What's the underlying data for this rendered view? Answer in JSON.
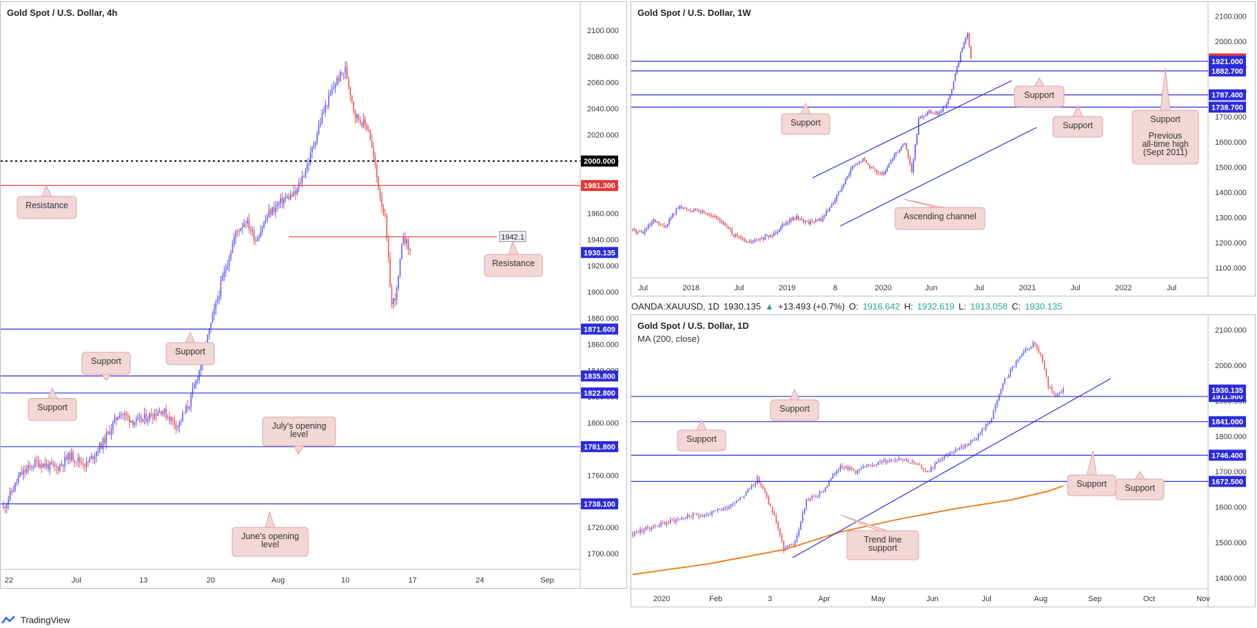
{
  "footer": {
    "brand": "TradingView",
    "icon": "tradingview-logo-icon"
  },
  "info_bar": {
    "symbol": "OANDA:XAUUSD, 1D",
    "last": "1930.135",
    "change": "+13.493 (+0.7%)",
    "o_label": "O:",
    "o": "1916.642",
    "h_label": "H:",
    "h": "1932.619",
    "l_label": "L:",
    "l": "1913.058",
    "c_label": "C:",
    "c": "1930.135"
  },
  "colors": {
    "up": "#5b5bff",
    "down": "#ef5350",
    "support": "#2b2bdc",
    "resistance": "#e53935",
    "ma": "#f07f22",
    "callout_bg": "#f3d6d6",
    "callout_border": "#d9a6a6"
  },
  "chart_data": [
    {
      "id": "h4",
      "type": "candlestick",
      "title": "Gold Spot / U.S. Dollar, 4h",
      "ylim": [
        1688,
        2112
      ],
      "y_ticks": [
        1700,
        1720,
        1740,
        1760,
        1780,
        1800,
        1820,
        1840,
        1860,
        1880,
        1900,
        1920,
        1940,
        1960,
        1980,
        2000,
        2020,
        2040,
        2060,
        2080,
        2100
      ],
      "x_ticks": [
        "22",
        "Jul",
        "13",
        "20",
        "Aug",
        "10",
        "17",
        "24",
        "Sep"
      ],
      "price_path": [
        [
          0,
          1735
        ],
        [
          10,
          1760
        ],
        [
          20,
          1770
        ],
        [
          32,
          1765
        ],
        [
          40,
          1775
        ],
        [
          50,
          1768
        ],
        [
          60,
          1785
        ],
        [
          70,
          1808
        ],
        [
          80,
          1800
        ],
        [
          95,
          1810
        ],
        [
          105,
          1798
        ],
        [
          112,
          1815
        ],
        [
          118,
          1840
        ],
        [
          124,
          1870
        ],
        [
          132,
          1910
        ],
        [
          140,
          1945
        ],
        [
          146,
          1955
        ],
        [
          152,
          1940
        ],
        [
          160,
          1960
        ],
        [
          168,
          1970
        ],
        [
          176,
          1975
        ],
        [
          184,
          2000
        ],
        [
          192,
          2035
        ],
        [
          200,
          2060
        ],
        [
          206,
          2070
        ],
        [
          212,
          2035
        ],
        [
          220,
          2025
        ],
        [
          226,
          1980
        ],
        [
          230,
          1955
        ],
        [
          234,
          1890
        ],
        [
          237,
          1900
        ],
        [
          241,
          1944
        ],
        [
          245,
          1930
        ]
      ],
      "levels": [
        {
          "value": 2000.0,
          "label": "2000.000",
          "style": "dotted",
          "color": "#000000"
        },
        {
          "value": 1981.3,
          "label": "1981.300",
          "style": "solid",
          "color": "#e53935"
        },
        {
          "value": 1942.1,
          "label": "1942.1",
          "style": "partial",
          "color": "#e53935"
        },
        {
          "value": 1871.609,
          "label": "1871.609",
          "style": "solid",
          "color": "#2b2bdc"
        },
        {
          "value": 1835.8,
          "label": "1835.800",
          "style": "solid",
          "color": "#2b2bdc"
        },
        {
          "value": 1822.8,
          "label": "1822.800",
          "style": "solid",
          "color": "#2b2bdc"
        },
        {
          "value": 1781.8,
          "label": "1781.800",
          "style": "solid",
          "color": "#2b2bdc"
        },
        {
          "value": 1738.1,
          "label": "1738.100",
          "style": "solid",
          "color": "#2b2bdc"
        }
      ],
      "last_price": {
        "value": 1930.135,
        "label": "1930.135"
      },
      "annotations": [
        "Resistance",
        "Resistance",
        "Support",
        "Support",
        "Support",
        "July's opening level",
        "June's opening level"
      ]
    },
    {
      "id": "weekly",
      "type": "candlestick",
      "title": "Gold Spot / U.S. Dollar, 1W",
      "ylim": [
        1060,
        2140
      ],
      "y_ticks": [
        1100,
        1200,
        1300,
        1400,
        1500,
        1600,
        1700,
        1800,
        1900,
        2000,
        2100
      ],
      "x_ticks": [
        "Jul",
        "2018",
        "Jul",
        "2019",
        "8",
        "2020",
        "Jun",
        "Jul",
        "2021",
        "Jul",
        "2022",
        "Jul"
      ],
      "price_path": [
        [
          0,
          1250
        ],
        [
          6,
          1240
        ],
        [
          12,
          1285
        ],
        [
          18,
          1260
        ],
        [
          26,
          1340
        ],
        [
          34,
          1330
        ],
        [
          42,
          1320
        ],
        [
          50,
          1290
        ],
        [
          58,
          1230
        ],
        [
          66,
          1200
        ],
        [
          72,
          1210
        ],
        [
          80,
          1230
        ],
        [
          88,
          1285
        ],
        [
          94,
          1300
        ],
        [
          100,
          1280
        ],
        [
          108,
          1290
        ],
        [
          114,
          1350
        ],
        [
          120,
          1420
        ],
        [
          126,
          1500
        ],
        [
          132,
          1530
        ],
        [
          138,
          1490
        ],
        [
          144,
          1470
        ],
        [
          150,
          1550
        ],
        [
          156,
          1600
        ],
        [
          160,
          1480
        ],
        [
          164,
          1690
        ],
        [
          170,
          1720
        ],
        [
          176,
          1710
        ],
        [
          182,
          1780
        ],
        [
          186,
          1900
        ],
        [
          190,
          2000
        ],
        [
          192,
          2030
        ],
        [
          194,
          1930
        ]
      ],
      "levels": [
        {
          "value": 1930.428,
          "label": "1930.428",
          "color": "#e53935",
          "kind": "last"
        },
        {
          "value": 1921.0,
          "label": "1921.000",
          "color": "#2b2bdc"
        },
        {
          "value": 1882.7,
          "label": "1882.700",
          "color": "#2b2bdc"
        },
        {
          "value": 1787.4,
          "label": "1787.400",
          "color": "#2b2bdc"
        },
        {
          "value": 1738.7,
          "label": "1738.700",
          "color": "#2b2bdc"
        }
      ],
      "annotations": [
        "Support",
        "Support",
        "Support",
        "Support",
        "Previous all-time high (Sept 2011)",
        "Ascending channel"
      ]
    },
    {
      "id": "daily",
      "type": "candlestick",
      "title": "Gold Spot / U.S. Dollar, 1D",
      "indicator": "MA (200, close)",
      "ylim": [
        1370,
        2130
      ],
      "y_ticks": [
        1400,
        1500,
        1600,
        1700,
        1800,
        1900,
        2000,
        2100
      ],
      "x_ticks": [
        "2020",
        "Feb",
        "3",
        "Apr",
        "May",
        "Jun",
        "Jul",
        "Aug",
        "Sep",
        "Oct",
        "Nov"
      ],
      "price_path": [
        [
          0,
          1525
        ],
        [
          10,
          1545
        ],
        [
          20,
          1560
        ],
        [
          30,
          1575
        ],
        [
          40,
          1580
        ],
        [
          50,
          1600
        ],
        [
          60,
          1640
        ],
        [
          66,
          1680
        ],
        [
          70,
          1640
        ],
        [
          76,
          1560
        ],
        [
          80,
          1480
        ],
        [
          86,
          1500
        ],
        [
          92,
          1620
        ],
        [
          100,
          1640
        ],
        [
          110,
          1720
        ],
        [
          118,
          1700
        ],
        [
          126,
          1720
        ],
        [
          134,
          1730
        ],
        [
          142,
          1740
        ],
        [
          150,
          1720
        ],
        [
          156,
          1700
        ],
        [
          162,
          1730
        ],
        [
          170,
          1760
        ],
        [
          178,
          1780
        ],
        [
          184,
          1810
        ],
        [
          190,
          1850
        ],
        [
          196,
          1950
        ],
        [
          202,
          2000
        ],
        [
          208,
          2040
        ],
        [
          212,
          2060
        ],
        [
          216,
          2030
        ],
        [
          220,
          1940
        ],
        [
          224,
          1910
        ],
        [
          228,
          1930
        ]
      ],
      "ma200": [
        [
          0,
          1410
        ],
        [
          40,
          1440
        ],
        [
          80,
          1480
        ],
        [
          110,
          1530
        ],
        [
          140,
          1565
        ],
        [
          170,
          1595
        ],
        [
          200,
          1620
        ],
        [
          220,
          1645
        ],
        [
          228,
          1660
        ]
      ],
      "levels": [
        {
          "value": 1911.9,
          "label": "1911.900",
          "color": "#2b2bdc"
        },
        {
          "value": 1841.0,
          "label": "1841.000",
          "color": "#2b2bdc"
        },
        {
          "value": 1746.4,
          "label": "1746.400",
          "color": "#2b2bdc"
        },
        {
          "value": 1672.5,
          "label": "1672.500",
          "color": "#2b2bdc"
        }
      ],
      "last_price": {
        "value": 1930.135,
        "label": "1930.135"
      },
      "annotations": [
        "Support",
        "Support",
        "Support",
        "Support",
        "Trend line support"
      ]
    }
  ]
}
